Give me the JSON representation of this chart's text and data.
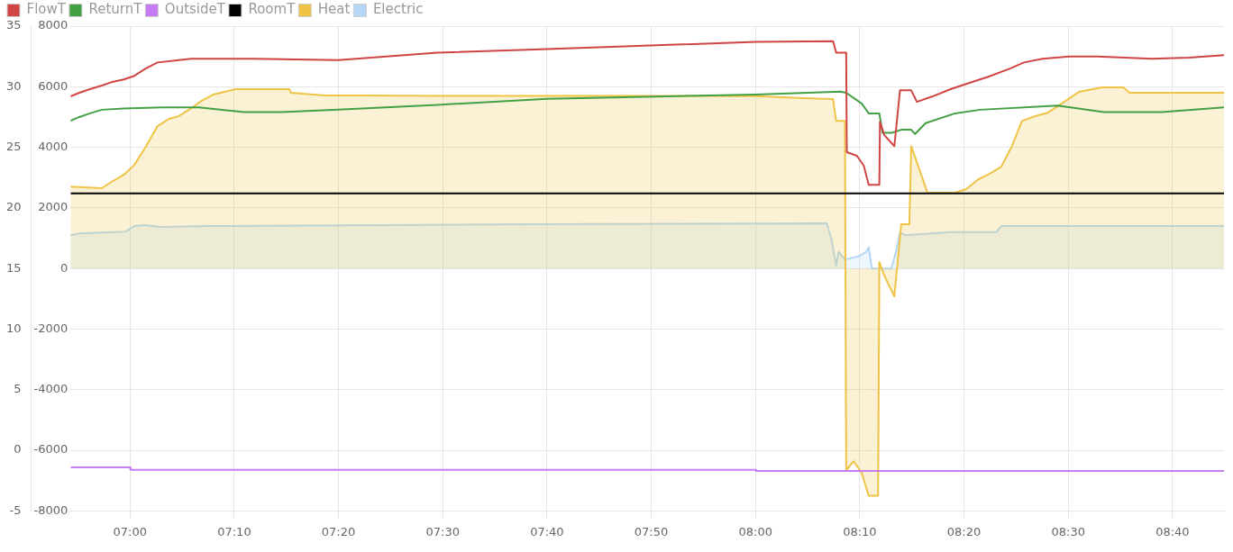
{
  "chart_data": {
    "type": "line",
    "legend": "top left",
    "grid": true,
    "xlim": [
      6.905,
      8.749
    ],
    "xticks": [
      {
        "value": 7,
        "label": "07:00"
      },
      {
        "value": 7.1667,
        "label": "07:10"
      },
      {
        "value": 7.3333,
        "label": "07:20"
      },
      {
        "value": 7.5,
        "label": "07:30"
      },
      {
        "value": 7.6667,
        "label": "07:40"
      },
      {
        "value": 7.8333,
        "label": "07:50"
      },
      {
        "value": 8,
        "label": "08:00"
      },
      {
        "value": 8.1667,
        "label": "08:10"
      },
      {
        "value": 8.3333,
        "label": "08:20"
      },
      {
        "value": 8.5,
        "label": "08:30"
      },
      {
        "value": 8.6667,
        "label": "08:40"
      }
    ],
    "ylim": [
      -5,
      35
    ],
    "yticks": [
      -5,
      0,
      5,
      10,
      15,
      20,
      25,
      30,
      35
    ],
    "y2lim": [
      -8000,
      8000
    ],
    "y2ticks": [
      -8000,
      -6000,
      -4000,
      -2000,
      0,
      2000,
      4000,
      6000,
      8000
    ],
    "series": [
      {
        "name": "FlowT",
        "color": "#d04444",
        "x": [
          6.905,
          6.919,
          6.936,
          6.955,
          6.972,
          6.99,
          7.007,
          7.025,
          7.044,
          7.078,
          7.098,
          7.198,
          7.333,
          7.491,
          7.667,
          8.0,
          8.124,
          8.129,
          8.145,
          8.146,
          8.162,
          8.173,
          8.181,
          8.198,
          8.199,
          8.206,
          8.222,
          8.231,
          8.249,
          8.258,
          8.283,
          8.312,
          8.341,
          8.371,
          8.407,
          8.429,
          8.459,
          8.502,
          8.547,
          8.634,
          8.693,
          8.749
        ],
        "values": [
          29.2,
          29.5,
          29.8,
          30.1,
          30.4,
          30.6,
          30.9,
          31.5,
          32.0,
          32.2,
          32.3,
          32.3,
          32.2,
          32.8,
          33.1,
          33.7,
          33.75,
          32.8,
          32.8,
          24.6,
          24.3,
          23.5,
          21.9,
          21.9,
          27.1,
          26.0,
          25.1,
          29.7,
          29.7,
          28.75,
          29.2,
          29.8,
          30.3,
          30.8,
          31.5,
          32.0,
          32.3,
          32.5,
          32.5,
          32.3,
          32.4,
          32.6
        ]
      },
      {
        "name": "ReturnT",
        "color": "#44a044",
        "x": [
          6.905,
          6.919,
          6.936,
          6.955,
          6.99,
          7.051,
          7.11,
          7.183,
          7.242,
          7.333,
          7.491,
          7.667,
          8.0,
          8.136,
          8.145,
          8.17,
          8.181,
          8.198,
          8.203,
          8.218,
          8.233,
          8.249,
          8.255,
          8.272,
          8.319,
          8.359,
          8.483,
          8.557,
          8.649,
          8.749
        ],
        "values": [
          27.2,
          27.5,
          27.8,
          28.1,
          28.2,
          28.3,
          28.3,
          27.9,
          27.9,
          28.1,
          28.5,
          29.0,
          29.35,
          29.6,
          29.5,
          28.6,
          27.8,
          27.8,
          26.2,
          26.2,
          26.45,
          26.45,
          26.1,
          27.0,
          27.8,
          28.1,
          28.45,
          27.9,
          27.9,
          28.3
        ]
      },
      {
        "name": "OutsideT",
        "color": "#c57cf5",
        "x": [
          6.905,
          7.0,
          7.001,
          8.0,
          8.001,
          8.749
        ],
        "values": [
          -1.4,
          -1.4,
          -1.6,
          -1.6,
          -1.7,
          -1.7
        ]
      },
      {
        "name": "RoomT",
        "color": "#000000",
        "x": [
          6.905,
          7.333,
          8.749
        ],
        "values": [
          21.2,
          21.2,
          21.2
        ]
      },
      {
        "name": "Heat",
        "type": "area",
        "axis": "y2",
        "color": "#efc345",
        "x": [
          6.905,
          6.955,
          6.972,
          6.99,
          7.007,
          7.025,
          7.044,
          7.062,
          7.078,
          7.098,
          7.114,
          7.133,
          7.151,
          7.169,
          7.255,
          7.257,
          7.312,
          7.366,
          7.491,
          7.667,
          8.0,
          8.077,
          8.124,
          8.129,
          8.143,
          8.145,
          8.157,
          8.17,
          8.181,
          8.196,
          8.198,
          8.206,
          8.222,
          8.233,
          8.246,
          8.249,
          8.275,
          8.319,
          8.337,
          8.356,
          8.374,
          8.393,
          8.41,
          8.426,
          8.447,
          8.466,
          8.483,
          8.5,
          8.517,
          8.554,
          8.588,
          8.598,
          8.749
        ],
        "values": [
          2700,
          2650,
          2880,
          3090,
          3420,
          4010,
          4700,
          4940,
          5030,
          5290,
          5530,
          5740,
          5830,
          5920,
          5920,
          5800,
          5710,
          5710,
          5700,
          5700,
          5690,
          5620,
          5590,
          4870,
          4870,
          -6660,
          -6360,
          -6760,
          -7500,
          -7500,
          210,
          -240,
          -920,
          1460,
          1460,
          4040,
          2500,
          2500,
          2620,
          2940,
          3120,
          3360,
          4040,
          4870,
          5030,
          5130,
          5350,
          5590,
          5830,
          5980,
          5980,
          5800,
          5800
        ]
      },
      {
        "name": "Electric",
        "type": "area",
        "axis": "y2",
        "color": "#b3d7f5",
        "x": [
          6.905,
          6.919,
          6.993,
          7.007,
          7.022,
          7.051,
          7.125,
          7.638,
          8.114,
          8.121,
          8.129,
          8.133,
          8.143,
          8.165,
          8.177,
          8.181,
          8.186,
          8.217,
          8.224,
          8.231,
          8.239,
          8.312,
          8.385,
          8.393,
          8.749
        ],
        "values": [
          1100,
          1160,
          1220,
          1400,
          1430,
          1370,
          1400,
          1460,
          1490,
          1000,
          100,
          550,
          300,
          400,
          550,
          700,
          0,
          0,
          500,
          1200,
          1100,
          1200,
          1200,
          1400,
          1400
        ]
      }
    ]
  }
}
